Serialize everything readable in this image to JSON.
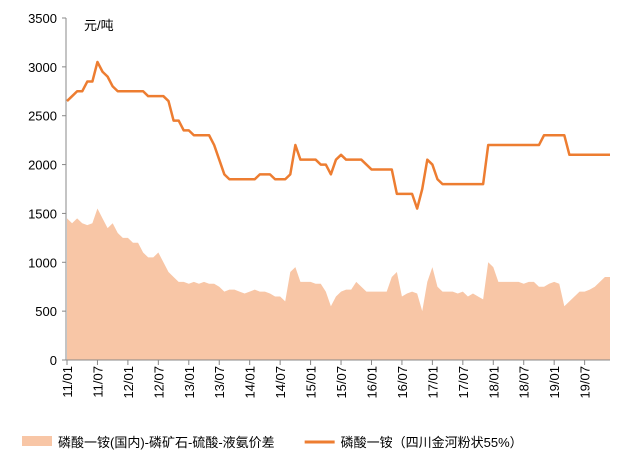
{
  "chart_data": {
    "type": "area_line",
    "y_unit_label": "元/吨",
    "categories": [
      "11/01",
      null,
      null,
      null,
      null,
      null,
      "11/07",
      null,
      null,
      null,
      null,
      null,
      "12/01",
      null,
      null,
      null,
      null,
      null,
      "12/07",
      null,
      null,
      null,
      null,
      null,
      "13/01",
      null,
      null,
      null,
      null,
      null,
      "13/07",
      null,
      null,
      null,
      null,
      null,
      "14/01",
      null,
      null,
      null,
      null,
      null,
      "14/07",
      null,
      null,
      null,
      null,
      null,
      "15/01",
      null,
      null,
      null,
      null,
      null,
      "15/07",
      null,
      null,
      null,
      null,
      null,
      "16/01",
      null,
      null,
      null,
      null,
      null,
      "16/07",
      null,
      null,
      null,
      null,
      null,
      "17/01",
      null,
      null,
      null,
      null,
      null,
      "17/07",
      null,
      null,
      null,
      null,
      null,
      "18/01",
      null,
      null,
      null,
      null,
      null,
      "18/07",
      null,
      null,
      null,
      null,
      null,
      "19/01",
      null,
      null,
      null,
      null,
      null,
      "19/07",
      null,
      null,
      null,
      null,
      null
    ],
    "series": [
      {
        "name": "磷酸一铵(国内)-磷矿石-硫酸-液氨价差",
        "kind": "area",
        "color": "#f8c6a6",
        "values": [
          1450,
          1400,
          1450,
          1400,
          1380,
          1400,
          1550,
          1450,
          1350,
          1400,
          1300,
          1250,
          1250,
          1200,
          1200,
          1100,
          1050,
          1050,
          1100,
          1000,
          900,
          850,
          800,
          800,
          780,
          800,
          780,
          800,
          780,
          780,
          750,
          700,
          720,
          720,
          700,
          680,
          700,
          720,
          700,
          700,
          680,
          650,
          650,
          600,
          900,
          950,
          800,
          800,
          800,
          780,
          780,
          700,
          550,
          650,
          700,
          720,
          720,
          800,
          750,
          700,
          700,
          700,
          700,
          700,
          850,
          900,
          650,
          680,
          700,
          680,
          500,
          800,
          950,
          750,
          700,
          700,
          700,
          680,
          700,
          650,
          680,
          650,
          620,
          1000,
          950,
          800,
          800,
          800,
          800,
          800,
          780,
          800,
          800,
          750,
          750,
          780,
          800,
          780,
          550,
          600,
          650,
          700,
          700,
          720,
          750,
          800,
          850,
          850
        ]
      },
      {
        "name": "磷酸一铵（四川金河粉状55%）",
        "kind": "line",
        "color": "#ed7d31",
        "values": [
          2650,
          2700,
          2750,
          2750,
          2850,
          2850,
          3050,
          2950,
          2900,
          2800,
          2750,
          2750,
          2750,
          2750,
          2750,
          2750,
          2700,
          2700,
          2700,
          2700,
          2650,
          2450,
          2450,
          2350,
          2350,
          2300,
          2300,
          2300,
          2300,
          2200,
          2050,
          1900,
          1850,
          1850,
          1850,
          1850,
          1850,
          1850,
          1900,
          1900,
          1900,
          1850,
          1850,
          1850,
          1900,
          2200,
          2050,
          2050,
          2050,
          2050,
          2000,
          2000,
          1900,
          2050,
          2100,
          2050,
          2050,
          2050,
          2050,
          2000,
          1950,
          1950,
          1950,
          1950,
          1950,
          1700,
          1700,
          1700,
          1700,
          1550,
          1750,
          2050,
          2000,
          1850,
          1800,
          1800,
          1800,
          1800,
          1800,
          1800,
          1800,
          1800,
          1800,
          2200,
          2200,
          2200,
          2200,
          2200,
          2200,
          2200,
          2200,
          2200,
          2200,
          2200,
          2300,
          2300,
          2300,
          2300,
          2300,
          2100,
          2100,
          2100,
          2100,
          2100,
          2100,
          2100,
          2100,
          2100
        ]
      }
    ],
    "ylim": [
      0,
      3500
    ],
    "yticks": [
      0,
      500,
      1000,
      1500,
      2000,
      2500,
      3000,
      3500
    ],
    "grid": false,
    "legend": "bottom"
  }
}
